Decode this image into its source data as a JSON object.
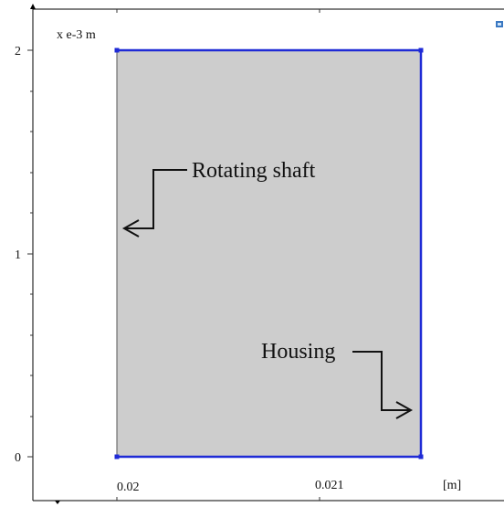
{
  "axes": {
    "y_unit": "x e-3 m",
    "x_unit": "[m]",
    "y_ticks": [
      "2",
      "1",
      "0"
    ],
    "x_ticks": [
      "0.02",
      "0.021"
    ]
  },
  "annotations": {
    "shaft_label": "Rotating shaft",
    "housing_label": "Housing"
  },
  "colors": {
    "region_fill": "#cdcdcd",
    "boundary": "#1f2bd6",
    "arrow": "#111111"
  }
}
